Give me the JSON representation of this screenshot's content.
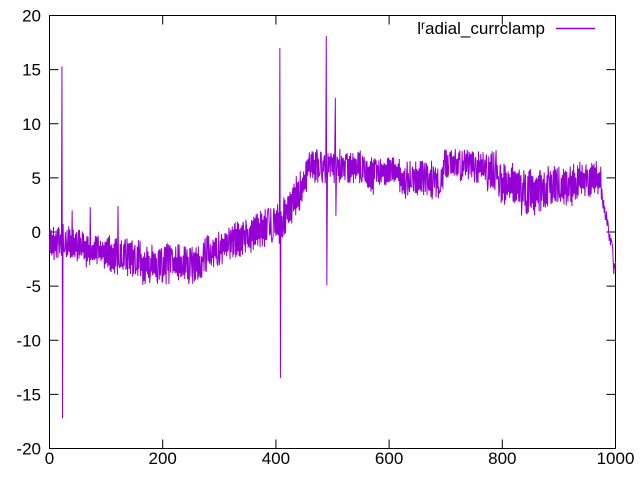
{
  "figure": {
    "background_color": "#ffffff",
    "border_color": "#000000",
    "text_color": "#000000"
  },
  "legend": {
    "label_full": "lʳadial_currclamp",
    "label_prefix": "l",
    "label_sup": "r",
    "label_rest": "adial_currclamp",
    "line_color": "#9400d3",
    "position": "top-right-inside"
  },
  "chart_data": {
    "type": "line",
    "title": "",
    "xlabel": "",
    "ylabel": "",
    "xlim": [
      0,
      1000
    ],
    "ylim": [
      -20,
      20
    ],
    "x_ticks": [
      0,
      200,
      400,
      600,
      800,
      1000
    ],
    "y_ticks": [
      20,
      15,
      10,
      5,
      0,
      -5,
      -10,
      -15,
      -20
    ],
    "grid": false,
    "tick_style": "inward-mirrored",
    "legend_position": "top-right-inside",
    "series": [
      {
        "name": "lʳadial_currclamp",
        "color": "#9400d3",
        "style": "noisy-line",
        "points_x_step": 1,
        "noise_seed": 1337,
        "envelope_segments": [
          {
            "x0": 0,
            "x1": 21,
            "y_start": -1.0,
            "y_end": -1.0,
            "noise_amp": 1.7
          },
          {
            "x0": 21,
            "x1": 26,
            "y_start": -1.0,
            "y_end": -1.0,
            "noise_amp": 1.8
          },
          {
            "x0": 26,
            "x1": 60,
            "y_start": -0.9,
            "y_end": -1.2,
            "noise_amp": 1.7
          },
          {
            "x0": 60,
            "x1": 95,
            "y_start": -1.8,
            "y_end": -1.8,
            "noise_amp": 1.6
          },
          {
            "x0": 95,
            "x1": 160,
            "y_start": -2.0,
            "y_end": -2.4,
            "noise_amp": 1.8
          },
          {
            "x0": 160,
            "x1": 270,
            "y_start": -3.0,
            "y_end": -3.0,
            "noise_amp": 1.9
          },
          {
            "x0": 270,
            "x1": 310,
            "y_start": -2.2,
            "y_end": -1.2,
            "noise_amp": 1.7
          },
          {
            "x0": 310,
            "x1": 395,
            "y_start": -1.1,
            "y_end": 0.6,
            "noise_amp": 1.8
          },
          {
            "x0": 395,
            "x1": 412,
            "y_start": 0.7,
            "y_end": 0.7,
            "noise_amp": 1.9
          },
          {
            "x0": 412,
            "x1": 455,
            "y_start": 1.2,
            "y_end": 5.0,
            "noise_amp": 1.9
          },
          {
            "x0": 455,
            "x1": 558,
            "y_start": 6.1,
            "y_end": 6.1,
            "noise_amp": 1.6
          },
          {
            "x0": 558,
            "x1": 572,
            "y_start": 5.2,
            "y_end": 5.2,
            "noise_amp": 1.8
          },
          {
            "x0": 572,
            "x1": 618,
            "y_start": 5.6,
            "y_end": 5.6,
            "noise_amp": 1.3
          },
          {
            "x0": 618,
            "x1": 695,
            "y_start": 4.8,
            "y_end": 4.8,
            "noise_amp": 1.8
          },
          {
            "x0": 695,
            "x1": 770,
            "y_start": 6.1,
            "y_end": 6.1,
            "noise_amp": 1.6
          },
          {
            "x0": 770,
            "x1": 792,
            "y_start": 5.6,
            "y_end": 5.6,
            "noise_amp": 2.0
          },
          {
            "x0": 792,
            "x1": 832,
            "y_start": 4.4,
            "y_end": 4.4,
            "noise_amp": 2.0
          },
          {
            "x0": 832,
            "x1": 880,
            "y_start": 3.7,
            "y_end": 3.7,
            "noise_amp": 2.2
          },
          {
            "x0": 880,
            "x1": 932,
            "y_start": 4.3,
            "y_end": 4.3,
            "noise_amp": 2.0
          },
          {
            "x0": 932,
            "x1": 974,
            "y_start": 4.8,
            "y_end": 4.8,
            "noise_amp": 1.8
          },
          {
            "x0": 974,
            "x1": 1000,
            "y_start": 4.0,
            "y_end": -3.2,
            "noise_amp": 0.8
          }
        ],
        "spikes": [
          {
            "x": 22,
            "peak": 15.3,
            "trough": -17.2
          },
          {
            "x": 40,
            "peak": 2.0,
            "trough": -2.3
          },
          {
            "x": 72,
            "peak": 2.3,
            "trough": -2.6
          },
          {
            "x": 121,
            "peak": 2.4,
            "trough": -3.0
          },
          {
            "x": 407,
            "peak": 17.0,
            "trough": -13.5
          },
          {
            "x": 489,
            "peak": 18.1,
            "trough": -4.9
          },
          {
            "x": 505,
            "peak": 12.4,
            "trough": 1.5
          },
          {
            "x": 997,
            "peak": -3.9,
            "trough": -2.9
          }
        ]
      }
    ]
  }
}
